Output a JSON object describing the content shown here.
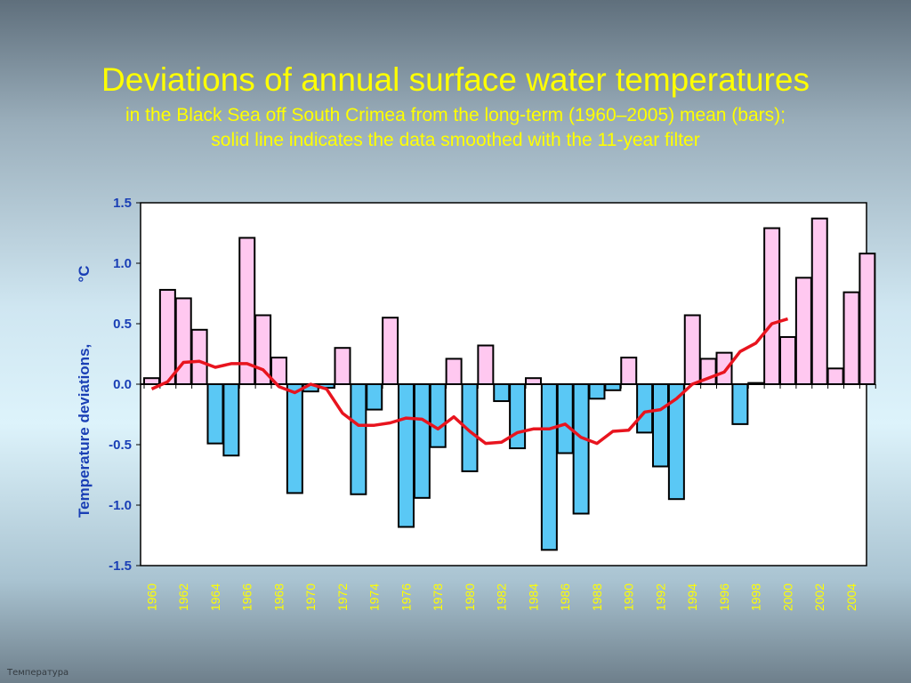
{
  "slide": {
    "title": "Deviations of annual surface water temperatures",
    "subtitle_line1": "in the Black Sea off South Crimea from the long-term (1960–2005) mean (bars);",
    "subtitle_line2": "solid line indicates the data smoothed with the 11-year filter",
    "footer": "Температура"
  },
  "chart_data": {
    "type": "bar",
    "title": "Deviations of annual surface water temperatures",
    "ylabel_main": "Temperature deviations,",
    "ylabel_unit": "°C",
    "ylim": [
      -1.5,
      1.5
    ],
    "yticks": [
      "1.5",
      "1.0",
      "0.5",
      "0.0",
      "-0.5",
      "-1.0",
      "-1.5"
    ],
    "ytick_values": [
      1.5,
      1.0,
      0.5,
      0.0,
      -0.5,
      -1.0,
      -1.5
    ],
    "xticks": [
      "1960",
      "1962",
      "1964",
      "1966",
      "1968",
      "1970",
      "1972",
      "1974",
      "1976",
      "1978",
      "1980",
      "1982",
      "1984",
      "1986",
      "1988",
      "1990",
      "1992",
      "1994",
      "1996",
      "1998",
      "2000",
      "2002",
      "2004"
    ],
    "years": [
      1960,
      1961,
      1962,
      1963,
      1964,
      1965,
      1966,
      1967,
      1968,
      1969,
      1970,
      1971,
      1972,
      1973,
      1974,
      1975,
      1976,
      1977,
      1978,
      1979,
      1980,
      1981,
      1982,
      1983,
      1984,
      1985,
      1986,
      1987,
      1988,
      1989,
      1990,
      1991,
      1992,
      1993,
      1994,
      1995,
      1996,
      1997,
      1998,
      1999,
      2000,
      2001,
      2002,
      2003,
      2004,
      2005
    ],
    "series": [
      {
        "kind": "bars",
        "values": [
          0.05,
          0.78,
          0.71,
          0.45,
          -0.49,
          -0.59,
          1.21,
          0.57,
          0.22,
          -0.9,
          -0.06,
          -0.03,
          0.3,
          -0.91,
          -0.21,
          0.55,
          -1.18,
          -0.94,
          -0.52,
          0.21,
          -0.72,
          0.32,
          -0.14,
          -0.53,
          0.05,
          -1.37,
          -0.57,
          -1.07,
          -0.12,
          -0.05,
          0.22,
          -0.4,
          -0.68,
          -0.95,
          0.57,
          0.21,
          0.26,
          -0.33,
          0.01,
          1.29,
          0.39,
          0.88,
          1.37,
          0.13,
          0.76,
          1.08
        ],
        "positive_color": "#ffc8f0",
        "negative_color": "#5ac8f5"
      },
      {
        "kind": "line",
        "x": [
          1960,
          1961,
          1962,
          1963,
          1964,
          1965,
          1966,
          1967,
          1968,
          1969,
          1970,
          1971,
          1972,
          1973,
          1974,
          1975,
          1976,
          1977,
          1978,
          1979,
          1980,
          1981,
          1982,
          1983,
          1984,
          1985,
          1986,
          1987,
          1988,
          1989,
          1990,
          1991,
          1992,
          1993,
          1994,
          1995,
          1996,
          1997,
          1998,
          1999,
          2000
        ],
        "values": [
          -0.04,
          0.02,
          0.18,
          0.19,
          0.14,
          0.17,
          0.17,
          0.12,
          -0.02,
          -0.07,
          0.0,
          -0.04,
          -0.24,
          -0.34,
          -0.34,
          -0.32,
          -0.28,
          -0.29,
          -0.37,
          -0.27,
          -0.39,
          -0.49,
          -0.48,
          -0.4,
          -0.37,
          -0.37,
          -0.33,
          -0.44,
          -0.49,
          -0.39,
          -0.38,
          -0.23,
          -0.21,
          -0.12,
          0.0,
          0.05,
          0.1,
          0.27,
          0.34,
          0.5,
          0.54
        ],
        "color": "#e8141e"
      }
    ]
  }
}
